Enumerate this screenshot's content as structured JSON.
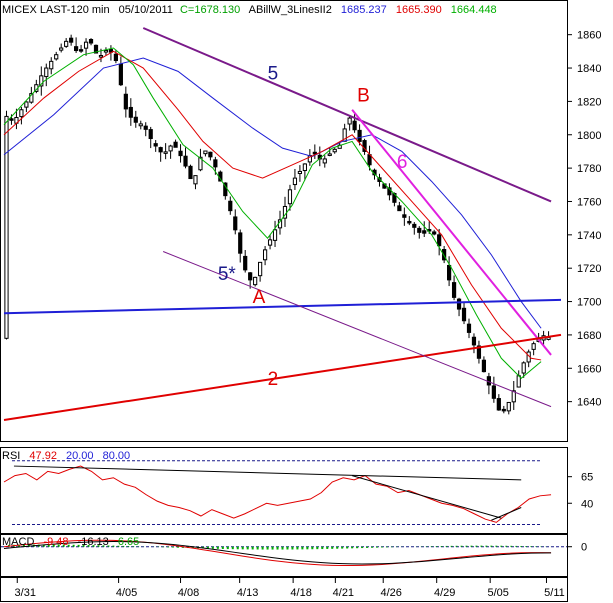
{
  "header": {
    "instrument": "MICEX LAST-120 min",
    "date": "05/10/2011",
    "close_label": "C=1678.130",
    "indicator": "ABillW_3LinesII2",
    "v1": "1685.237",
    "v2": "1665.390",
    "v3": "1664.448"
  },
  "colors": {
    "blue": "#1f1fd6",
    "red": "#e00000",
    "green": "#00b000",
    "magenta": "#e020e0",
    "purple": "#7a1a8a",
    "navy": "#1a1a8a",
    "candle": "#000000"
  },
  "chart_data": [
    {
      "type": "candlestick",
      "title": "MICEX LAST-120 min",
      "x_ticks": [
        "3/31",
        "4/05",
        "4/08",
        "4/13",
        "4/18",
        "4/21",
        "4/26",
        "4/29",
        "5/05",
        "5/11"
      ],
      "y_ticks": [
        1640,
        1660,
        1680,
        1700,
        1720,
        1740,
        1760,
        1780,
        1800,
        1820,
        1840,
        1860
      ],
      "ylim": [
        1617,
        1870
      ],
      "close_path": [
        [
          0,
          1812
        ],
        [
          2,
          1808
        ],
        [
          5,
          1822
        ],
        [
          8,
          1838
        ],
        [
          11,
          1850
        ],
        [
          13,
          1858
        ],
        [
          15,
          1848
        ],
        [
          17,
          1858
        ],
        [
          19,
          1846
        ],
        [
          21,
          1852
        ],
        [
          23,
          1842
        ],
        [
          24,
          1818
        ],
        [
          26,
          1808
        ],
        [
          28,
          1806
        ],
        [
          30,
          1795
        ],
        [
          32,
          1788
        ],
        [
          34,
          1795
        ],
        [
          36,
          1785
        ],
        [
          38,
          1770
        ],
        [
          40,
          1792
        ],
        [
          42,
          1785
        ],
        [
          44,
          1768
        ],
        [
          46,
          1750
        ],
        [
          48,
          1722
        ],
        [
          50,
          1710
        ],
        [
          52,
          1728
        ],
        [
          54,
          1740
        ],
        [
          56,
          1752
        ],
        [
          58,
          1772
        ],
        [
          60,
          1780
        ],
        [
          62,
          1790
        ],
        [
          64,
          1784
        ],
        [
          66,
          1790
        ],
        [
          68,
          1795
        ],
        [
          69,
          1812
        ],
        [
          70,
          1808
        ],
        [
          71,
          1798
        ],
        [
          72,
          1794
        ],
        [
          74,
          1778
        ],
        [
          76,
          1770
        ],
        [
          78,
          1762
        ],
        [
          80,
          1752
        ],
        [
          82,
          1746
        ],
        [
          84,
          1740
        ],
        [
          86,
          1744
        ],
        [
          88,
          1730
        ],
        [
          89,
          1720
        ],
        [
          90,
          1706
        ],
        [
          92,
          1692
        ],
        [
          94,
          1678
        ],
        [
          96,
          1662
        ],
        [
          98,
          1646
        ],
        [
          99,
          1638
        ],
        [
          100,
          1632
        ],
        [
          102,
          1642
        ],
        [
          104,
          1660
        ],
        [
          106,
          1673
        ],
        [
          108,
          1680
        ],
        [
          110,
          1678
        ]
      ],
      "overlays": [
        {
          "name": "1685.237",
          "color": "blue",
          "points": [
            [
              0,
              1788
            ],
            [
              10,
              1812
            ],
            [
              20,
              1840
            ],
            [
              28,
              1846
            ],
            [
              35,
              1838
            ],
            [
              42,
              1822
            ],
            [
              50,
              1804
            ],
            [
              56,
              1792
            ],
            [
              62,
              1787
            ],
            [
              68,
              1796
            ],
            [
              74,
              1800
            ],
            [
              80,
              1790
            ],
            [
              86,
              1772
            ],
            [
              92,
              1752
            ],
            [
              98,
              1728
            ],
            [
              104,
              1700
            ],
            [
              108,
              1684
            ]
          ]
        },
        {
          "name": "1665.390",
          "color": "red",
          "points": [
            [
              0,
              1800
            ],
            [
              8,
              1822
            ],
            [
              15,
              1838
            ],
            [
              22,
              1850
            ],
            [
              28,
              1840
            ],
            [
              35,
              1815
            ],
            [
              40,
              1796
            ],
            [
              46,
              1780
            ],
            [
              52,
              1774
            ],
            [
              58,
              1782
            ],
            [
              64,
              1790
            ],
            [
              70,
              1800
            ],
            [
              76,
              1780
            ],
            [
              82,
              1760
            ],
            [
              88,
              1740
            ],
            [
              94,
              1710
            ],
            [
              100,
              1684
            ],
            [
              106,
              1666
            ],
            [
              108,
              1665
            ]
          ]
        },
        {
          "name": "1664.448",
          "color": "green",
          "points": [
            [
              0,
              1806
            ],
            [
              8,
              1832
            ],
            [
              16,
              1848
            ],
            [
              22,
              1852
            ],
            [
              26,
              1842
            ],
            [
              30,
              1822
            ],
            [
              36,
              1794
            ],
            [
              42,
              1780
            ],
            [
              48,
              1754
            ],
            [
              53,
              1738
            ],
            [
              58,
              1758
            ],
            [
              62,
              1782
            ],
            [
              66,
              1792
            ],
            [
              70,
              1796
            ],
            [
              74,
              1778
            ],
            [
              80,
              1760
            ],
            [
              86,
              1740
            ],
            [
              90,
              1720
            ],
            [
              95,
              1692
            ],
            [
              100,
              1666
            ],
            [
              104,
              1654
            ],
            [
              108,
              1664
            ]
          ]
        }
      ],
      "trendlines": [
        {
          "label": "5",
          "color": "purple",
          "from": [
            28,
            1864
          ],
          "to": [
            110,
            1760
          ]
        },
        {
          "label": "6",
          "color": "magenta",
          "from": [
            70,
            1815
          ],
          "to": [
            110,
            1668
          ]
        },
        {
          "label": "2",
          "color": "red",
          "from": [
            0,
            1629
          ],
          "to": [
            112,
            1680
          ]
        },
        {
          "label": "",
          "color": "blue",
          "from": [
            0,
            1693
          ],
          "to": [
            112,
            1701
          ]
        },
        {
          "label": "5*",
          "color": "purple",
          "from": [
            32,
            1730
          ],
          "to": [
            110,
            1637
          ]
        }
      ],
      "annotations": [
        {
          "text": "5",
          "color": "navy",
          "x": 53,
          "y": 1833
        },
        {
          "text": "B",
          "color": "red",
          "x": 71,
          "y": 1820
        },
        {
          "text": "6",
          "color": "magenta",
          "x": 79,
          "y": 1780
        },
        {
          "text": "5*",
          "color": "navy",
          "x": 43,
          "y": 1713
        },
        {
          "text": "A",
          "color": "red",
          "x": 50,
          "y": 1699
        },
        {
          "text": "2",
          "color": "red",
          "x": 53,
          "y": 1650
        }
      ]
    },
    {
      "type": "line",
      "title": "RSI",
      "values_label": [
        "47.92",
        "20.00",
        "80.00"
      ],
      "y_ticks": [
        40,
        65
      ],
      "ylim": [
        12,
        92
      ],
      "levels": [
        20,
        80
      ],
      "series": [
        {
          "name": "RSI",
          "values": [
            60,
            66,
            68,
            62,
            70,
            68,
            72,
            75,
            70,
            62,
            64,
            58,
            55,
            48,
            42,
            38,
            36,
            33,
            28,
            34,
            30,
            26,
            30,
            35,
            40,
            38,
            40,
            42,
            44,
            50,
            60,
            64,
            62,
            66,
            58,
            56,
            50,
            52,
            48,
            44,
            40,
            38,
            35,
            30,
            25,
            22,
            30,
            36,
            44,
            47,
            48
          ]
        }
      ]
    },
    {
      "type": "line",
      "title": "MACD",
      "values_label": [
        "-9.48",
        "-16.13",
        "6.65"
      ],
      "y_ticks": [
        0
      ],
      "ylim": [
        -25,
        10
      ]
    }
  ]
}
